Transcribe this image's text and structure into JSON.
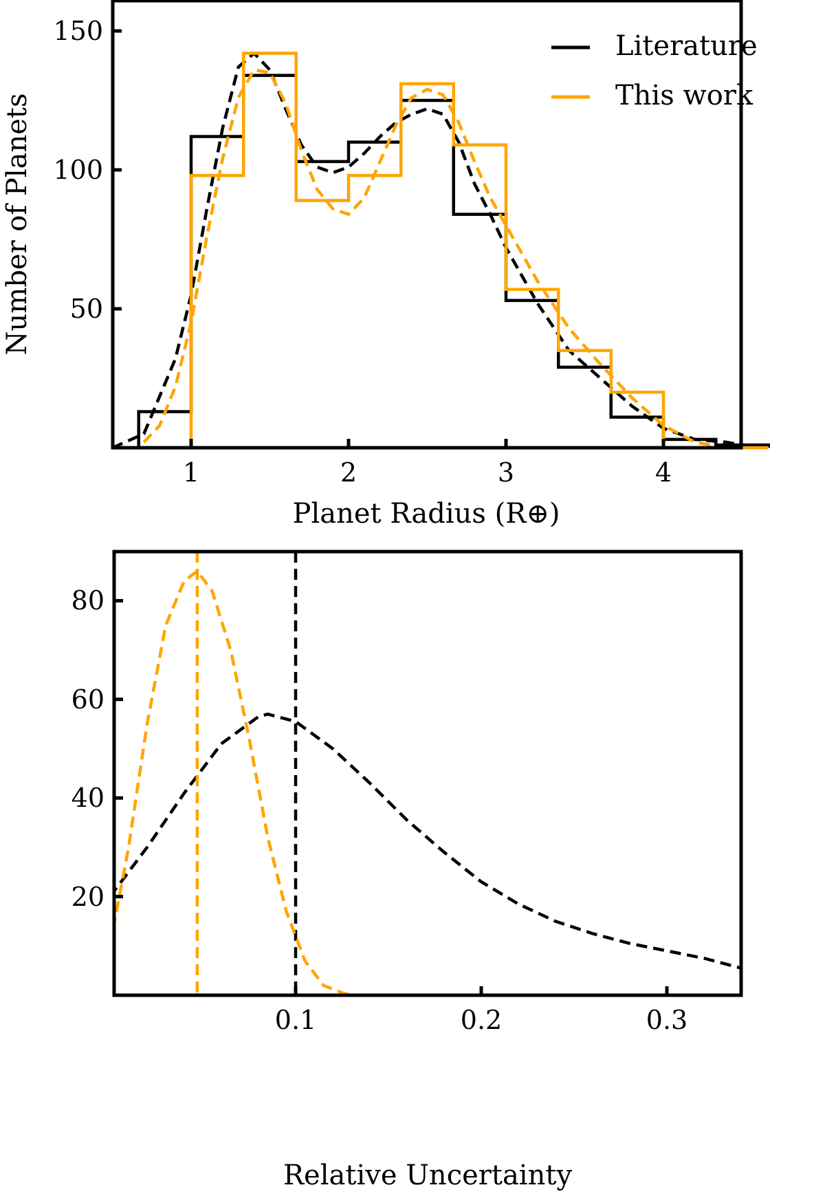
{
  "colors": {
    "literature": "#000000",
    "this_work": "#FFA500",
    "axes": "#000000",
    "background": "#ffffff"
  },
  "chart_data": [
    {
      "type": "bar",
      "subtype": "step-histogram-with-kde",
      "title": "",
      "xlabel": "Planet Radius (R⊕)",
      "ylabel": "Number of Planets",
      "xlim": [
        0.5,
        4.5
      ],
      "ylim": [
        0,
        160
      ],
      "xticks": [
        1,
        2,
        3,
        4
      ],
      "xtick_labels": [
        "1",
        "2",
        "3",
        "4"
      ],
      "yticks": [
        50,
        100,
        150
      ],
      "ytick_labels": [
        "50",
        "100",
        "150"
      ],
      "grid": false,
      "legend": {
        "position": "upper right",
        "entries": [
          "Literature",
          "This work"
        ]
      },
      "bin_edges": [
        0.667,
        1.0,
        1.333,
        1.667,
        2.0,
        2.333,
        2.667,
        3.0,
        3.333,
        3.667,
        4.0,
        4.333,
        4.667
      ],
      "series": [
        {
          "name": "Literature",
          "color": "#000000",
          "histogram": [
            13,
            112,
            134,
            103,
            110,
            125,
            84,
            53,
            29,
            11,
            3,
            1
          ],
          "kde": {
            "x": [
              0.5,
              0.7,
              0.9,
              1.0,
              1.1,
              1.2,
              1.3,
              1.4,
              1.5,
              1.6,
              1.7,
              1.8,
              1.9,
              2.0,
              2.1,
              2.2,
              2.3,
              2.4,
              2.5,
              2.6,
              2.7,
              2.8,
              2.9,
              3.0,
              3.2,
              3.4,
              3.6,
              3.8,
              4.0,
              4.2,
              4.4,
              4.5
            ],
            "y": [
              0,
              5,
              32,
              55,
              86,
              115,
              137,
              142,
              136,
              122,
              109,
              101,
              99,
              101,
              106,
              112,
              117,
              120,
              122,
              120,
              110,
              95,
              84,
              72,
              52,
              35,
              25,
              15,
              7,
              3,
              2,
              1
            ]
          }
        },
        {
          "name": "This work",
          "color": "#FFA500",
          "histogram": [
            0,
            98,
            142,
            89,
            98,
            131,
            109,
            57,
            35,
            20,
            0,
            0
          ],
          "kde": {
            "x": [
              0.7,
              0.8,
              0.9,
              1.0,
              1.1,
              1.2,
              1.3,
              1.4,
              1.5,
              1.6,
              1.7,
              1.8,
              1.9,
              2.0,
              2.1,
              2.2,
              2.3,
              2.4,
              2.5,
              2.6,
              2.7,
              2.8,
              2.9,
              3.0,
              3.2,
              3.4,
              3.6,
              3.8,
              4.0,
              4.2,
              4.3
            ],
            "y": [
              2,
              8,
              22,
              45,
              76,
              104,
              126,
              136,
              135,
              124,
              107,
              93,
              86,
              84,
              90,
              103,
              116,
              126,
              129,
              127,
              117,
              103,
              90,
              80,
              60,
              43,
              30,
              18,
              8,
              2,
              1
            ]
          }
        }
      ]
    },
    {
      "type": "line",
      "title": "",
      "xlabel": "Relative Uncertainty",
      "ylabel": "",
      "xlim": [
        0.0,
        0.34
      ],
      "ylim": [
        0,
        90
      ],
      "xticks": [
        0.1,
        0.2,
        0.3
      ],
      "xtick_labels": [
        "0.1",
        "0.2",
        "0.3"
      ],
      "yticks": [
        20,
        40,
        60,
        80
      ],
      "ytick_labels": [
        "20",
        "40",
        "60",
        "80"
      ],
      "grid": false,
      "series": [
        {
          "name": "Literature",
          "color": "#000000",
          "style": "dashed",
          "x": [
            0.0,
            0.02,
            0.04,
            0.06,
            0.08,
            0.085,
            0.1,
            0.12,
            0.14,
            0.16,
            0.18,
            0.2,
            0.22,
            0.24,
            0.26,
            0.28,
            0.3,
            0.32,
            0.34
          ],
          "y": [
            20,
            30,
            41,
            51,
            56.5,
            57,
            55.5,
            50,
            43,
            35.5,
            29,
            23,
            18.5,
            15,
            12.5,
            10.5,
            9,
            7.5,
            5.5
          ],
          "vline_x": 0.1
        },
        {
          "name": "This work",
          "color": "#FFA500",
          "style": "dashed",
          "x": [
            0.0,
            0.01,
            0.02,
            0.03,
            0.04,
            0.047,
            0.055,
            0.065,
            0.075,
            0.085,
            0.095,
            0.105,
            0.115,
            0.125,
            0.13
          ],
          "y": [
            10,
            30,
            55,
            75,
            84,
            86,
            82,
            70,
            52,
            32,
            17,
            7,
            2,
            0.5,
            0
          ],
          "vline_x": 0.047
        }
      ]
    }
  ],
  "top_plot": {
    "xlabel": "Planet Radius (R⊕)",
    "ylabel": "Number of Planets",
    "legend": {
      "literature": "Literature",
      "this_work": "This work"
    },
    "xtick_labels": [
      "1",
      "2",
      "3",
      "4"
    ],
    "ytick_labels": [
      "50",
      "100",
      "150"
    ]
  },
  "bottom_plot": {
    "xlabel": "Relative Uncertainty",
    "xtick_labels": [
      "0.1",
      "0.2",
      "0.3"
    ],
    "ytick_labels": [
      "20",
      "40",
      "60",
      "80"
    ]
  }
}
